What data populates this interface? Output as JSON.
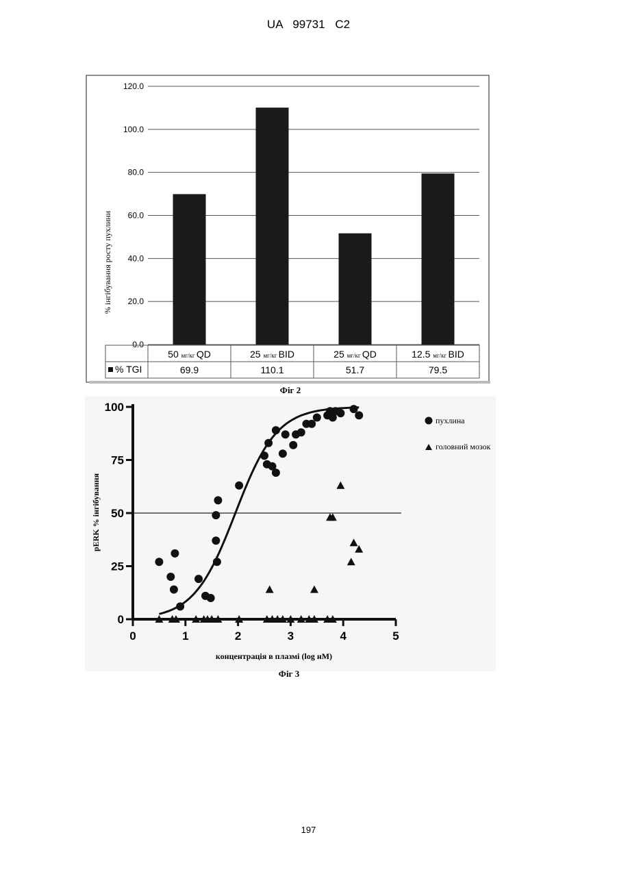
{
  "header": {
    "text": "UA   99731   C2"
  },
  "page_number": "197",
  "chart_data": [
    {
      "type": "bar",
      "caption": "Фіг 2",
      "ylabel": "% інгібування росту пухлини",
      "ylim": [
        0,
        120
      ],
      "yticks": [
        "0.0",
        "20.0",
        "40.0",
        "60.0",
        "80.0",
        "100.0",
        "120.0"
      ],
      "grid": true,
      "bar_color": "#1a1a1a",
      "categories": [
        {
          "dose": "50",
          "unit": "мг/кг",
          "regimen": "QD"
        },
        {
          "dose": "25",
          "unit": "мг/кг",
          "regimen": "BID"
        },
        {
          "dose": "25",
          "unit": "мг/кг",
          "regimen": "QD"
        },
        {
          "dose": "12.5",
          "unit": "мг/кг",
          "regimen": "BID"
        }
      ],
      "series": [
        {
          "name": "% TGI",
          "values": [
            69.9,
            110.1,
            51.7,
            79.5
          ],
          "labels": [
            "69.9",
            "110.1",
            "51.7",
            "79.5"
          ]
        }
      ]
    },
    {
      "type": "scatter",
      "caption": "Фіг 3",
      "xlabel": "концентрація в плазмі (log нМ)",
      "ylabel": "pERK % інгібування",
      "xlim": [
        0,
        5
      ],
      "ylim": [
        0,
        100
      ],
      "xticks": [
        "0",
        "1",
        "2",
        "3",
        "4",
        "5"
      ],
      "yticks": [
        "0",
        "25",
        "50",
        "75",
        "100"
      ],
      "reference_line_y": 50,
      "legend_position": "top-right",
      "series": [
        {
          "name": "пухлина",
          "marker": "circle",
          "points": [
            [
              0.5,
              27
            ],
            [
              0.72,
              20
            ],
            [
              0.8,
              31
            ],
            [
              0.78,
              14
            ],
            [
              0.9,
              6
            ],
            [
              1.25,
              19
            ],
            [
              1.38,
              11
            ],
            [
              1.48,
              10
            ],
            [
              1.58,
              37
            ],
            [
              1.58,
              49
            ],
            [
              1.62,
              56
            ],
            [
              1.6,
              27
            ],
            [
              2.02,
              63
            ],
            [
              2.5,
              77
            ],
            [
              2.55,
              73
            ],
            [
              2.58,
              83
            ],
            [
              2.65,
              72
            ],
            [
              2.72,
              89
            ],
            [
              2.72,
              69
            ],
            [
              2.85,
              78
            ],
            [
              2.9,
              87
            ],
            [
              3.05,
              82
            ],
            [
              3.1,
              87
            ],
            [
              3.2,
              88
            ],
            [
              3.3,
              92
            ],
            [
              3.4,
              92
            ],
            [
              3.5,
              95
            ],
            [
              3.7,
              96
            ],
            [
              3.75,
              98
            ],
            [
              3.8,
              95
            ],
            [
              3.85,
              98
            ],
            [
              3.95,
              97
            ],
            [
              4.2,
              99
            ],
            [
              4.3,
              96
            ]
          ]
        },
        {
          "name": "головний мозок",
          "marker": "triangle",
          "points": [
            [
              0.5,
              0
            ],
            [
              0.75,
              0
            ],
            [
              0.82,
              0
            ],
            [
              1.2,
              0
            ],
            [
              1.35,
              0
            ],
            [
              1.42,
              0
            ],
            [
              1.5,
              0
            ],
            [
              1.62,
              0
            ],
            [
              2.02,
              0
            ],
            [
              2.55,
              0
            ],
            [
              2.65,
              0
            ],
            [
              2.75,
              0
            ],
            [
              2.85,
              0
            ],
            [
              3.0,
              0
            ],
            [
              3.2,
              0
            ],
            [
              3.35,
              0
            ],
            [
              3.45,
              0
            ],
            [
              3.7,
              0
            ],
            [
              3.8,
              0
            ],
            [
              2.6,
              14
            ],
            [
              3.45,
              14
            ],
            [
              3.75,
              48
            ],
            [
              3.8,
              48
            ],
            [
              3.95,
              63
            ],
            [
              4.15,
              27
            ],
            [
              4.2,
              36
            ],
            [
              4.3,
              33
            ]
          ]
        }
      ],
      "fit_curve": {
        "bottom": 0,
        "top": 100,
        "logEC50": 1.95,
        "hill": 1.1,
        "x_range": [
          0.5,
          4.3
        ]
      }
    }
  ]
}
